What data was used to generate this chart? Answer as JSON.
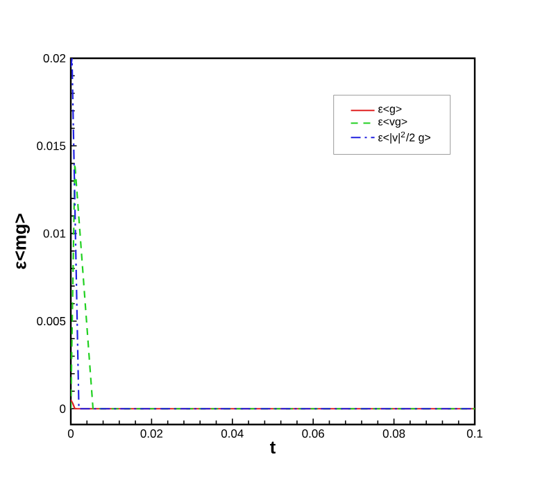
{
  "chart_data": {
    "type": "line",
    "xlabel": "t",
    "ylabel": "ε<mg>",
    "xlim": [
      0,
      0.1
    ],
    "ylim": [
      -0.0009,
      0.02
    ],
    "xticks": [
      0,
      0.02,
      0.04,
      0.06,
      0.08,
      0.1
    ],
    "yticks": [
      0,
      0.005,
      0.01,
      0.015,
      0.02
    ],
    "legend": "top right",
    "grid": false,
    "series": [
      {
        "name": "ε<g>",
        "color": "#e02020",
        "line_style": "solid",
        "x": [
          0,
          0.0005,
          0.001,
          0.002,
          0.05,
          0.1
        ],
        "values": [
          0.0005,
          0.0003,
          0,
          0,
          0,
          0
        ]
      },
      {
        "name": "ε<vg>",
        "color": "#20d020",
        "line_style": "dashed",
        "x": [
          0,
          0.001,
          0.0055,
          0.006,
          0.05,
          0.1
        ],
        "values": [
          0,
          0.014,
          0,
          0,
          0,
          0
        ]
      },
      {
        "name": "ε<|v|$^{2}$/2 g>",
        "color": "#2020e0",
        "line_style": "dashdotted",
        "x": [
          0,
          0.0003,
          0.002,
          0.003,
          0.05,
          0.1
        ],
        "values": [
          0.0195,
          0.02,
          0,
          0,
          0,
          0
        ]
      }
    ]
  }
}
